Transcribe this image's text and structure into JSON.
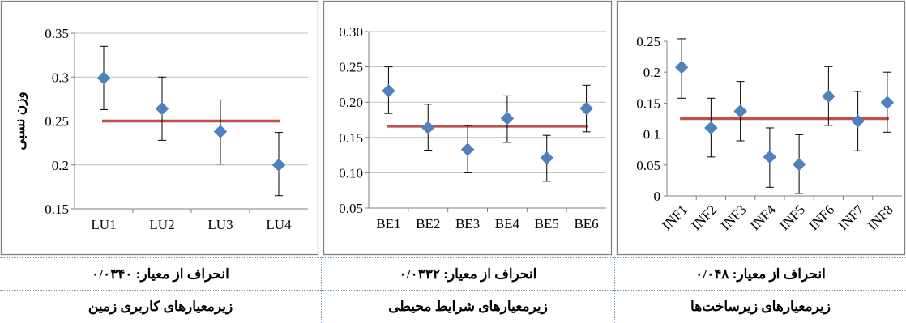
{
  "colors": {
    "marker": "#4f81bd",
    "reference_line": "#c0504d",
    "frame": "#808080",
    "error_bar": "#000000"
  },
  "chart_data": [
    {
      "type": "scatter",
      "id": "lu",
      "ylabel": "وزن نسبی",
      "ylim": [
        0.15,
        0.35
      ],
      "yticks": [
        "0.35",
        "0.3",
        "0.25",
        "0.2",
        "0.15"
      ],
      "ytick_values": [
        0.35,
        0.3,
        0.25,
        0.2,
        0.15
      ],
      "categories": [
        "LU1",
        "LU2",
        "LU3",
        "LU4"
      ],
      "values": [
        0.299,
        0.264,
        0.238,
        0.2
      ],
      "error_low": [
        0.263,
        0.228,
        0.201,
        0.165
      ],
      "error_high": [
        0.335,
        0.3,
        0.274,
        0.237
      ],
      "reference": 0.25,
      "grid": true,
      "rotate_xticks": false
    },
    {
      "type": "scatter",
      "id": "be",
      "ylabel": "",
      "ylim": [
        0.05,
        0.3
      ],
      "yticks": [
        "0.30",
        "0.25",
        "0.20",
        "0.15",
        "0.10",
        "0.05"
      ],
      "ytick_values": [
        0.3,
        0.25,
        0.2,
        0.15,
        0.1,
        0.05
      ],
      "categories": [
        "BE1",
        "BE2",
        "BE3",
        "BE4",
        "BE5",
        "BE6"
      ],
      "values": [
        0.216,
        0.164,
        0.133,
        0.177,
        0.121,
        0.191
      ],
      "error_low": [
        0.184,
        0.132,
        0.1,
        0.143,
        0.088,
        0.158
      ],
      "error_high": [
        0.25,
        0.197,
        0.167,
        0.209,
        0.153,
        0.224
      ],
      "reference": 0.166,
      "grid": true,
      "rotate_xticks": false
    },
    {
      "type": "scatter",
      "id": "inf",
      "ylabel": "",
      "ylim": [
        0,
        0.25
      ],
      "yticks": [
        "0.25",
        "0.2",
        "0.15",
        "0.1",
        "0.05",
        "0"
      ],
      "ytick_values": [
        0.25,
        0.2,
        0.15,
        0.1,
        0.05,
        0
      ],
      "categories": [
        "INF1",
        "INF2",
        "INF3",
        "INF4",
        "INF5",
        "INF6",
        "INF7",
        "INF8"
      ],
      "values": [
        0.208,
        0.11,
        0.137,
        0.063,
        0.051,
        0.161,
        0.121,
        0.151
      ],
      "error_low": [
        0.158,
        0.063,
        0.089,
        0.014,
        0.004,
        0.114,
        0.073,
        0.103
      ],
      "error_high": [
        0.254,
        0.158,
        0.185,
        0.11,
        0.099,
        0.209,
        0.169,
        0.2
      ],
      "reference": 0.125,
      "grid": false,
      "rotate_xticks": true
    }
  ],
  "captions": {
    "deviation": [
      "انحراف از معیار: ۰/۰۳۴۰",
      "انحراف از معیار: ۰/۰۳۳۲",
      "انحراف از معیار: ۰/۰۴۸"
    ],
    "group": [
      "زیرمعیارهای کاربری زمین",
      "زیرمعیارهای شرایط محیطی",
      "زیرمعیارهای زیرساخت‌ها"
    ]
  }
}
